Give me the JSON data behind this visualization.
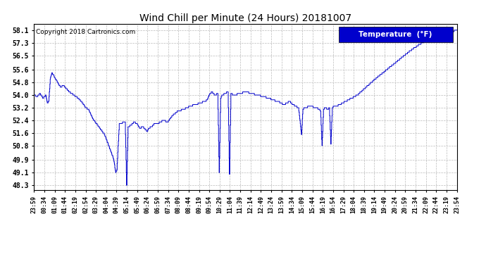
{
  "title": "Wind Chill per Minute (24 Hours) 20181007",
  "copyright": "Copyright 2018 Cartronics.com",
  "legend_label": "Temperature  (°F)",
  "legend_bg": "#0000cc",
  "legend_text_color": "#ffffff",
  "line_color": "#0000cc",
  "bg_color": "#ffffff",
  "plot_bg_color": "#ffffff",
  "grid_color": "#bbbbbb",
  "yticks": [
    48.3,
    49.1,
    49.9,
    50.8,
    51.6,
    52.4,
    53.2,
    54.0,
    54.8,
    55.6,
    56.5,
    57.3,
    58.1
  ],
  "ylim": [
    48.0,
    58.5
  ],
  "xtick_labels": [
    "23:59",
    "00:34",
    "01:09",
    "01:44",
    "02:19",
    "02:54",
    "03:29",
    "04:04",
    "04:39",
    "05:14",
    "05:49",
    "06:24",
    "06:59",
    "07:34",
    "08:09",
    "08:44",
    "09:19",
    "09:54",
    "10:29",
    "11:04",
    "11:39",
    "12:14",
    "12:49",
    "13:24",
    "13:59",
    "14:34",
    "15:09",
    "15:44",
    "16:19",
    "16:54",
    "17:29",
    "18:04",
    "18:39",
    "19:14",
    "19:49",
    "20:24",
    "20:59",
    "21:34",
    "22:09",
    "22:44",
    "23:19",
    "23:54"
  ]
}
